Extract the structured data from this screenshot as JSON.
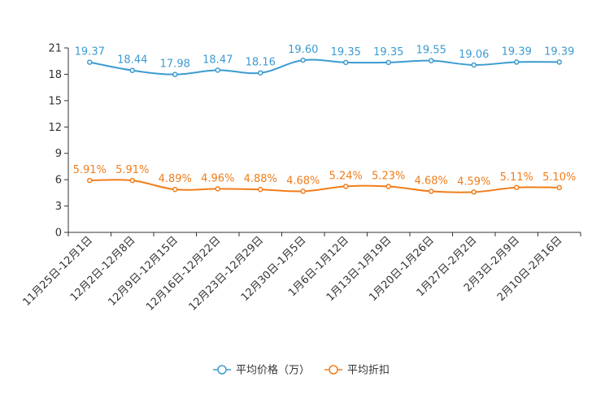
{
  "chart_data": {
    "type": "line",
    "categories": [
      "11月25日-12月1日",
      "12月2日-12月8日",
      "12月9日-12月15日",
      "12月16日-12月22日",
      "12月23日-12月29日",
      "12月30日-1月5日",
      "1月6日-1月12日",
      "1月13日-1月19日",
      "1月20日-1月26日",
      "1月27日-2月2日",
      "2月3日-2月9日",
      "2月10日-2月16日"
    ],
    "ylim": [
      0,
      21
    ],
    "yticks": [
      0,
      3,
      6,
      9,
      12,
      15,
      18,
      21
    ],
    "series": [
      {
        "name": "平均价格（万）",
        "color": "#3c9bd1",
        "values": [
          19.37,
          18.44,
          17.98,
          18.47,
          18.16,
          19.6,
          19.35,
          19.35,
          19.55,
          19.06,
          19.39,
          19.39
        ],
        "labels": [
          "19.37",
          "18.44",
          "17.98",
          "18.47",
          "18.16",
          "19.60",
          "19.35",
          "19.35",
          "19.55",
          "19.06",
          "19.39",
          "19.39"
        ]
      },
      {
        "name": "平均折扣",
        "color": "#f07d1a",
        "values": [
          5.91,
          5.91,
          4.89,
          4.96,
          4.88,
          4.68,
          5.24,
          5.23,
          4.68,
          4.59,
          5.11,
          5.1
        ],
        "labels": [
          "5.91%",
          "5.91%",
          "4.89%",
          "4.96%",
          "4.88%",
          "4.68%",
          "5.24%",
          "5.23%",
          "4.68%",
          "4.59%",
          "5.11%",
          "5.10%"
        ]
      }
    ]
  }
}
